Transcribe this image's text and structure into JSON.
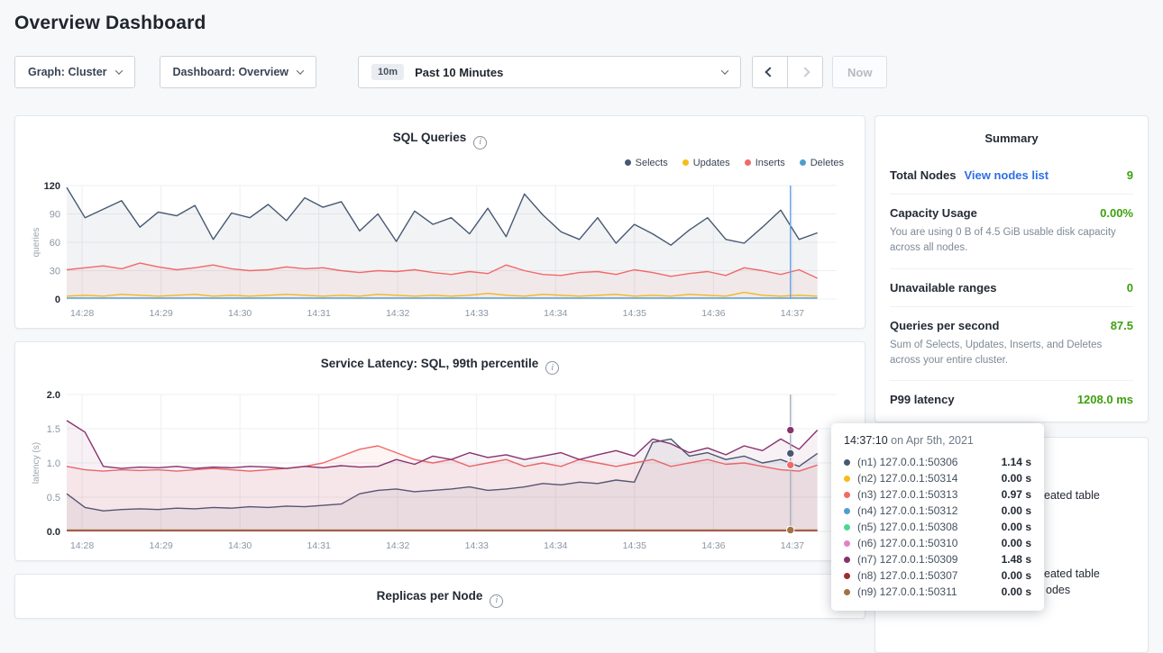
{
  "page": {
    "title": "Overview Dashboard"
  },
  "controls": {
    "graph_dropdown": {
      "label": "Graph: Cluster"
    },
    "dashboard_dropdown": {
      "label": "Dashboard: Overview"
    },
    "time_range": {
      "badge": "10m",
      "label": "Past 10 Minutes"
    },
    "now_button": "Now"
  },
  "colors": {
    "success_green": "#3da00e",
    "link_blue": "#2e6fe5",
    "hover_line_blue": "#6aa6e8"
  },
  "summary": {
    "title": "Summary",
    "total_nodes": {
      "label": "Total Nodes",
      "link": "View nodes list",
      "value": "9"
    },
    "capacity": {
      "label": "Capacity Usage",
      "value": "0.00%",
      "desc": "You are using 0 B of 4.5 GiB usable disk capacity across all nodes."
    },
    "unavailable": {
      "label": "Unavailable ranges",
      "value": "0"
    },
    "qps": {
      "label": "Queries per second",
      "value": "87.5",
      "desc": "Sum of Selects, Updates, Inserts, and Deletes across your entire cluster."
    },
    "p99": {
      "label": "P99 latency",
      "value": "1208.0 ms"
    }
  },
  "tooltip": {
    "time": "14:37:10",
    "date_suffix": " on Apr 5th, 2021",
    "rows": [
      {
        "color": "#475872",
        "label": "(n1) 127.0.0.1:50306",
        "value": "1.14 s"
      },
      {
        "color": "#f5bd18",
        "label": "(n2) 127.0.0.1:50314",
        "value": "0.00 s"
      },
      {
        "color": "#f16969",
        "label": "(n3) 127.0.0.1:50313",
        "value": "0.97 s"
      },
      {
        "color": "#4e9fd1",
        "label": "(n4) 127.0.0.1:50312",
        "value": "0.00 s"
      },
      {
        "color": "#49d990",
        "label": "(n5) 127.0.0.1:50308",
        "value": "0.00 s"
      },
      {
        "color": "#e182c9",
        "label": "(n6) 127.0.0.1:50310",
        "value": "0.00 s"
      },
      {
        "color": "#87326d",
        "label": "(n7) 127.0.0.1:50309",
        "value": "1.48 s"
      },
      {
        "color": "#9e2c2c",
        "label": "(n8) 127.0.0.1:50307",
        "value": "0.00 s"
      },
      {
        "color": "#a27245",
        "label": "(n9) 127.0.0.1:50311",
        "value": "0.00 s"
      }
    ]
  },
  "events": {
    "fragments": [
      "eated table",
      "eated table",
      "odes"
    ]
  },
  "chart_data": [
    {
      "type": "line",
      "title": "SQL Queries",
      "ylabel": "queries",
      "ylim": [
        0,
        120
      ],
      "yticks": [
        0,
        30,
        60,
        90,
        120
      ],
      "ytick_labels": [
        "0",
        "30",
        "60",
        "90",
        "120"
      ],
      "xticks": [
        "14:28",
        "14:29",
        "14:30",
        "14:31",
        "14:32",
        "14:33",
        "14:34",
        "14:35",
        "14:36",
        "14:37"
      ],
      "grid": true,
      "legend_position": "top-right",
      "hover_frac": 0.94,
      "hover_color": "#6aa6e8",
      "series": [
        {
          "name": "Selects",
          "color": "#475872",
          "fill": true,
          "values": [
            118,
            86,
            95,
            104,
            76,
            92,
            88,
            99,
            63,
            91,
            86,
            100,
            83,
            107,
            97,
            103,
            72,
            90,
            61,
            93,
            79,
            86,
            69,
            96,
            66,
            111,
            89,
            71,
            63,
            86,
            59,
            79,
            69,
            57,
            73,
            86,
            63,
            59,
            76,
            94,
            63,
            70
          ]
        },
        {
          "name": "Updates",
          "color": "#f5bd18",
          "fill": false,
          "values": [
            3,
            4,
            3,
            5,
            4,
            3,
            4,
            5,
            3,
            4,
            3,
            4,
            5,
            4,
            3,
            4,
            3,
            5,
            4,
            3,
            4,
            3,
            4,
            6,
            4,
            3,
            5,
            4,
            3,
            4,
            5,
            3,
            4,
            3,
            5,
            4,
            3,
            7,
            4,
            3,
            4,
            3
          ]
        },
        {
          "name": "Inserts",
          "color": "#f16969",
          "fill": true,
          "values": [
            31,
            33,
            35,
            32,
            38,
            34,
            31,
            33,
            36,
            32,
            30,
            31,
            34,
            32,
            33,
            30,
            28,
            30,
            29,
            31,
            28,
            26,
            29,
            27,
            36,
            30,
            26,
            25,
            28,
            29,
            26,
            31,
            28,
            24,
            27,
            29,
            25,
            33,
            30,
            26,
            31,
            22
          ]
        },
        {
          "name": "Deletes",
          "color": "#4e9fd1",
          "fill": false,
          "values": [
            1
          ]
        }
      ]
    },
    {
      "type": "line",
      "title": "Service Latency: SQL, 99th percentile",
      "ylabel": "latency (s)",
      "ylim": [
        0,
        2
      ],
      "yticks": [
        0,
        0.5,
        1,
        1.5,
        2
      ],
      "ytick_labels": [
        "0.0",
        "0.5",
        "1.0",
        "1.5",
        "2.0"
      ],
      "xticks": [
        "14:28",
        "14:29",
        "14:30",
        "14:31",
        "14:32",
        "14:33",
        "14:34",
        "14:35",
        "14:36",
        "14:37"
      ],
      "grid": true,
      "hover_frac": 0.94,
      "hover_color": "#a9b3bd",
      "hover_dots": [
        {
          "color": "#87326d",
          "value": 1.48
        },
        {
          "color": "#475872",
          "value": 1.14
        },
        {
          "color": "#f16969",
          "value": 0.97
        },
        {
          "color": "#a27245",
          "value": 0.02
        }
      ],
      "series": [
        {
          "name": "(n1) 127.0.0.1:50306",
          "color": "#475872",
          "fill": true,
          "values": [
            0.55,
            0.35,
            0.3,
            0.32,
            0.33,
            0.32,
            0.34,
            0.33,
            0.35,
            0.34,
            0.36,
            0.35,
            0.37,
            0.36,
            0.38,
            0.4,
            0.55,
            0.6,
            0.62,
            0.58,
            0.6,
            0.62,
            0.65,
            0.6,
            0.62,
            0.65,
            0.7,
            0.68,
            0.72,
            0.7,
            0.75,
            0.72,
            1.3,
            1.35,
            1.1,
            1.15,
            1.05,
            1.1,
            1.0,
            1.05,
            0.95,
            1.14
          ]
        },
        {
          "name": "(n2) 127.0.0.1:50314",
          "color": "#f5bd18",
          "fill": false,
          "values": [
            0.01
          ]
        },
        {
          "name": "(n3) 127.0.0.1:50313",
          "color": "#f16969",
          "fill": true,
          "values": [
            0.95,
            0.9,
            0.88,
            0.9,
            0.89,
            0.9,
            0.88,
            0.9,
            0.92,
            0.9,
            0.88,
            0.9,
            0.92,
            0.95,
            1.0,
            1.1,
            1.2,
            1.25,
            1.15,
            1.05,
            1.0,
            1.05,
            0.95,
            1.0,
            1.05,
            0.95,
            1.0,
            0.95,
            1.05,
            1.0,
            0.95,
            1.0,
            1.05,
            0.95,
            1.0,
            1.05,
            0.98,
            1.0,
            0.95,
            0.9,
            0.88,
            0.97
          ]
        },
        {
          "name": "(n4) 127.0.0.1:50312",
          "color": "#4e9fd1",
          "fill": false,
          "values": [
            0.01
          ]
        },
        {
          "name": "(n5) 127.0.0.1:50308",
          "color": "#49d990",
          "fill": false,
          "values": [
            0.01
          ]
        },
        {
          "name": "(n6) 127.0.0.1:50310",
          "color": "#e182c9",
          "fill": false,
          "values": [
            0.01
          ]
        },
        {
          "name": "(n7) 127.0.0.1:50309",
          "color": "#87326d",
          "fill": true,
          "values": [
            1.62,
            1.45,
            0.95,
            0.92,
            0.94,
            0.93,
            0.95,
            0.92,
            0.94,
            0.93,
            0.95,
            0.94,
            0.92,
            0.95,
            0.93,
            0.96,
            0.94,
            0.95,
            1.05,
            0.98,
            1.1,
            1.05,
            1.15,
            1.08,
            1.12,
            1.05,
            1.1,
            1.15,
            1.05,
            1.12,
            1.18,
            1.1,
            1.35,
            1.28,
            1.15,
            1.22,
            1.12,
            1.25,
            1.18,
            1.35,
            1.2,
            1.48
          ]
        },
        {
          "name": "(n8) 127.0.0.1:50307",
          "color": "#9e2c2c",
          "fill": false,
          "values": [
            0.01
          ]
        },
        {
          "name": "(n9) 127.0.0.1:50311",
          "color": "#a27245",
          "fill": false,
          "values": [
            0.02
          ]
        }
      ]
    },
    {
      "type": "line",
      "title": "Replicas per Node",
      "series": []
    }
  ]
}
